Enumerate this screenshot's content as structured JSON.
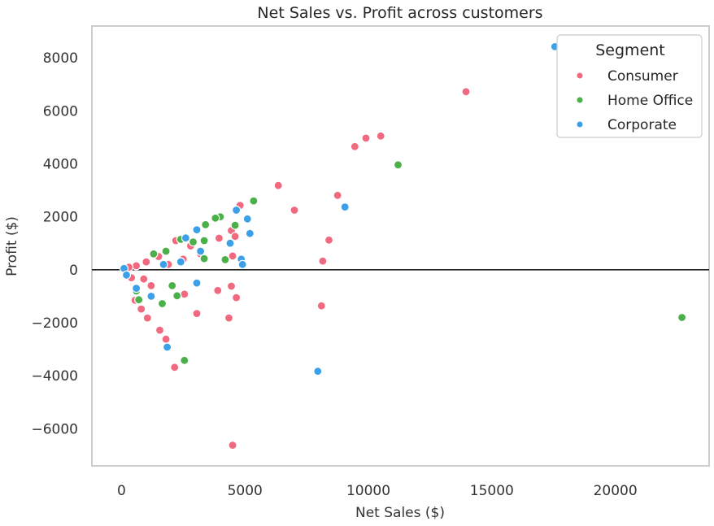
{
  "chart_data": {
    "type": "scatter",
    "title": "Net Sales vs. Profit across customers",
    "xlabel": "Net Sales ($)",
    "ylabel": "Profit ($)",
    "xlim": [
      -1200,
      23800
    ],
    "ylim": [
      -7400,
      9200
    ],
    "xticks": [
      0,
      5000,
      10000,
      15000,
      20000
    ],
    "yticks": [
      -6000,
      -4000,
      -2000,
      0,
      2000,
      4000,
      6000,
      8000
    ],
    "grid": false,
    "zero_line": 0,
    "legend": {
      "title": "Segment",
      "placement": "top-right"
    },
    "series": [
      {
        "name": "Consumer",
        "color": "#f0697f",
        "points": [
          [
            13950,
            6720
          ],
          [
            10500,
            5050
          ],
          [
            9900,
            4970
          ],
          [
            9450,
            4650
          ],
          [
            6350,
            3180
          ],
          [
            8750,
            2810
          ],
          [
            7000,
            2250
          ],
          [
            8400,
            1120
          ],
          [
            8150,
            330
          ],
          [
            8100,
            -1360
          ],
          [
            4800,
            2430
          ],
          [
            4450,
            1480
          ],
          [
            4600,
            1260
          ],
          [
            3950,
            1190
          ],
          [
            4500,
            520
          ],
          [
            3900,
            -780
          ],
          [
            4450,
            -620
          ],
          [
            4650,
            -1050
          ],
          [
            4350,
            -1820
          ],
          [
            3050,
            -1650
          ],
          [
            2550,
            -920
          ],
          [
            2150,
            -3680
          ],
          [
            1800,
            -2620
          ],
          [
            1550,
            -2280
          ],
          [
            1050,
            -1820
          ],
          [
            800,
            -1480
          ],
          [
            550,
            -1150
          ],
          [
            4500,
            -6620
          ],
          [
            3200,
            600
          ],
          [
            2500,
            400
          ],
          [
            1900,
            200
          ],
          [
            1200,
            -600
          ],
          [
            900,
            -350
          ],
          [
            2800,
            900
          ],
          [
            2200,
            1100
          ],
          [
            1500,
            500
          ],
          [
            1000,
            300
          ],
          [
            600,
            150
          ],
          [
            400,
            -300
          ],
          [
            300,
            100
          ]
        ]
      },
      {
        "name": "Home Office",
        "color": "#4cb04a",
        "points": [
          [
            11200,
            3960
          ],
          [
            22700,
            -1800
          ],
          [
            5350,
            2600
          ],
          [
            4600,
            1680
          ],
          [
            4000,
            2000
          ],
          [
            3800,
            1950
          ],
          [
            3400,
            1700
          ],
          [
            3350,
            1100
          ],
          [
            2900,
            1050
          ],
          [
            4200,
            380
          ],
          [
            3350,
            420
          ],
          [
            2550,
            -3420
          ],
          [
            2050,
            -600
          ],
          [
            1650,
            -1280
          ],
          [
            2250,
            -980
          ],
          [
            700,
            -1130
          ],
          [
            2400,
            1150
          ],
          [
            1800,
            700
          ],
          [
            1300,
            600
          ],
          [
            600,
            -800
          ]
        ]
      },
      {
        "name": "Corporate",
        "color": "#3ca0e8",
        "points": [
          [
            17550,
            8420
          ],
          [
            9050,
            2370
          ],
          [
            5100,
            1920
          ],
          [
            5200,
            1370
          ],
          [
            4650,
            2250
          ],
          [
            4400,
            1000
          ],
          [
            4850,
            400
          ],
          [
            4900,
            200
          ],
          [
            3050,
            1510
          ],
          [
            3050,
            -500
          ],
          [
            1850,
            -2920
          ],
          [
            7950,
            -3830
          ],
          [
            2400,
            300
          ],
          [
            1700,
            200
          ],
          [
            1200,
            -1000
          ],
          [
            600,
            -700
          ],
          [
            100,
            50
          ],
          [
            200,
            -200
          ],
          [
            3200,
            700
          ],
          [
            2600,
            1200
          ]
        ]
      }
    ]
  }
}
